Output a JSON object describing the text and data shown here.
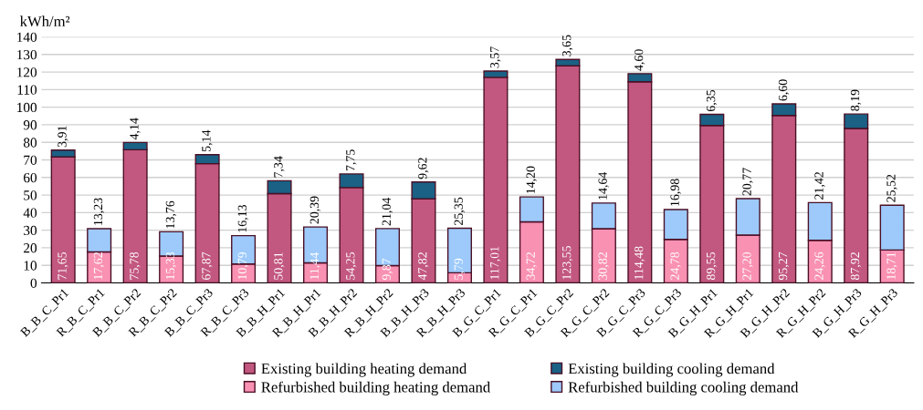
{
  "chart_data": {
    "type": "bar",
    "stacked": true,
    "ylabel": "kWh/m²",
    "categories": [
      "B_B_C_Pr1",
      "R_B_C_Pr1",
      "B_B_C_Pr2",
      "R_B_C_Pr2",
      "B_B_C_Pr3",
      "R_B_C_Pr3",
      "B_B_H_Pr1",
      "R_B_H_Pr1",
      "B_B_H_Pr2",
      "R_B_H_Pr2",
      "B_B_H_Pr3",
      "R_B_H_Pr3",
      "B_G_C_Pr1",
      "R_G_C_Pr1",
      "B_G_C_Pr2",
      "R_G_C_Pr2",
      "B_G_C_Pr3",
      "R_G_C_Pr3",
      "B_G_H_Pr1",
      "R_G_H_Pr1",
      "B_G_H_Pr2",
      "R_G_H_Pr2",
      "B_G_H_Pr3",
      "R_G_H_Pr3"
    ],
    "series": [
      {
        "name": "Existing building heating demand",
        "color": "#c2577f",
        "values": [
          71.65,
          null,
          75.78,
          null,
          67.87,
          null,
          50.81,
          null,
          54.25,
          null,
          47.82,
          null,
          117.01,
          null,
          123.55,
          null,
          114.48,
          null,
          89.55,
          null,
          95.27,
          null,
          87.92,
          null
        ],
        "value_labels": [
          "71,65",
          null,
          "75,78",
          null,
          "67,87",
          null,
          "50,81",
          null,
          "54,25",
          null,
          "47,82",
          null,
          "117,01",
          null,
          "123,55",
          null,
          "114,48",
          null,
          "89,55",
          null,
          "95,27",
          null,
          "87,92",
          null
        ]
      },
      {
        "name": "Existing building cooling demand",
        "color": "#1a6185",
        "values": [
          3.91,
          null,
          4.14,
          null,
          5.14,
          null,
          7.34,
          null,
          7.75,
          null,
          9.62,
          null,
          3.57,
          null,
          3.65,
          null,
          4.6,
          null,
          6.35,
          null,
          6.6,
          null,
          8.19,
          null
        ],
        "value_labels": [
          "3,91",
          null,
          "4,14",
          null,
          "5,14",
          null,
          "7,34",
          null,
          "7,75",
          null,
          "9,62",
          null,
          "3,57",
          null,
          "3,65",
          null,
          "4,60",
          null,
          "6,35",
          null,
          "6,60",
          null,
          "8,19",
          null
        ]
      },
      {
        "name": "Refurbished building heating demand",
        "color": "#f991b3",
        "values": [
          null,
          17.62,
          null,
          15.33,
          null,
          10.79,
          null,
          11.44,
          null,
          9.87,
          null,
          5.79,
          null,
          34.72,
          null,
          30.82,
          null,
          24.78,
          null,
          27.2,
          null,
          24.26,
          null,
          18.71
        ],
        "value_labels": [
          null,
          "17,62",
          null,
          "15,33",
          null,
          "10,79",
          null,
          "11,44",
          null,
          "9,87",
          null,
          "5,79",
          null,
          "34,72",
          null,
          "30,82",
          null,
          "24,78",
          null,
          "27,20",
          null,
          "24,26",
          null,
          "18,71"
        ]
      },
      {
        "name": "Refurbished building cooling demand",
        "color": "#9dcafb",
        "values": [
          null,
          13.23,
          null,
          13.76,
          null,
          16.13,
          null,
          20.39,
          null,
          21.04,
          null,
          25.35,
          null,
          14.2,
          null,
          14.64,
          null,
          16.98,
          null,
          20.77,
          null,
          21.42,
          null,
          25.52
        ],
        "value_labels": [
          null,
          "13,23",
          null,
          "13,76",
          null,
          "16,13",
          null,
          "20,39",
          null,
          "21,04",
          null,
          "25,35",
          null,
          "14,20",
          null,
          "14,64",
          null,
          "16,98",
          null,
          "20,77",
          null,
          "21,42",
          null,
          "25,52"
        ]
      }
    ],
    "ylim": [
      0,
      140
    ],
    "yticks": [
      0,
      10,
      20,
      30,
      40,
      50,
      60,
      70,
      80,
      90,
      100,
      110,
      120,
      130,
      140
    ],
    "grid": "y",
    "legend": "bottom"
  }
}
